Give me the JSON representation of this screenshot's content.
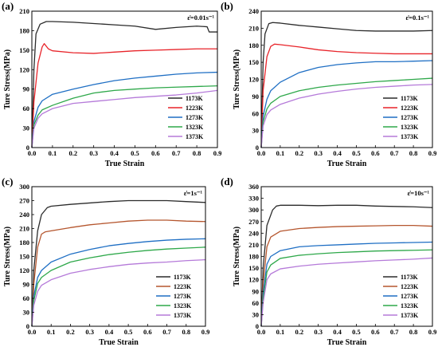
{
  "chart_data": [
    {
      "type": "line",
      "panel_label": "(a)",
      "annotation": "ε̇=0.01s⁻¹",
      "xlabel": "True Strain",
      "ylabel": "Ture Stress(MPa)",
      "xlim": [
        0.0,
        0.9
      ],
      "ylim": [
        0,
        210
      ],
      "xticks": [
        "0.0",
        "0.1",
        "0.2",
        "0.3",
        "0.4",
        "0.5",
        "0.6",
        "0.7",
        "0.8",
        "0.9"
      ],
      "yticks": [
        "0",
        "30",
        "60",
        "90",
        "120",
        "150",
        "180",
        "210"
      ],
      "legend_position": "bottom-right",
      "series": [
        {
          "name": "1173K",
          "color": "#2b2b2b",
          "x": [
            0,
            0.01,
            0.02,
            0.04,
            0.07,
            0.1,
            0.2,
            0.3,
            0.4,
            0.5,
            0.6,
            0.7,
            0.8,
            0.85,
            0.86,
            0.9
          ],
          "y": [
            0,
            120,
            175,
            190,
            194,
            194,
            193,
            191,
            189,
            187,
            182,
            185,
            187,
            186,
            178,
            178
          ]
        },
        {
          "name": "1223K",
          "color": "#e8242a",
          "x": [
            0,
            0.01,
            0.03,
            0.05,
            0.06,
            0.08,
            0.1,
            0.2,
            0.3,
            0.4,
            0.5,
            0.6,
            0.7,
            0.8,
            0.9
          ],
          "y": [
            0,
            70,
            130,
            155,
            160,
            152,
            149,
            146,
            145,
            147,
            149,
            150,
            151,
            152,
            152
          ]
        },
        {
          "name": "1273K",
          "color": "#1f6fc4",
          "x": [
            0,
            0.01,
            0.03,
            0.05,
            0.1,
            0.2,
            0.3,
            0.4,
            0.5,
            0.6,
            0.7,
            0.8,
            0.9
          ],
          "y": [
            0,
            40,
            62,
            72,
            82,
            90,
            97,
            103,
            107,
            110,
            113,
            115,
            116
          ]
        },
        {
          "name": "1323K",
          "color": "#2ea84a",
          "x": [
            0,
            0.01,
            0.03,
            0.05,
            0.1,
            0.2,
            0.3,
            0.4,
            0.5,
            0.6,
            0.7,
            0.8,
            0.9
          ],
          "y": [
            0,
            35,
            50,
            58,
            65,
            76,
            84,
            88,
            90,
            92,
            93,
            94,
            95
          ]
        },
        {
          "name": "1373K",
          "color": "#b57ad9",
          "x": [
            0,
            0.01,
            0.03,
            0.05,
            0.1,
            0.2,
            0.3,
            0.4,
            0.5,
            0.6,
            0.7,
            0.8,
            0.9
          ],
          "y": [
            0,
            30,
            45,
            52,
            60,
            68,
            71,
            74,
            77,
            79,
            81,
            84,
            88
          ]
        }
      ]
    },
    {
      "type": "line",
      "panel_label": "(b)",
      "annotation": "ε̇=0.1s⁻¹",
      "xlabel": "True Strain",
      "ylabel": "Ture Stress(MPa)",
      "xlim": [
        0.0,
        0.9
      ],
      "ylim": [
        0,
        240
      ],
      "xticks": [
        "0.0",
        "0.1",
        "0.2",
        "0.3",
        "0.4",
        "0.5",
        "0.6",
        "0.7",
        "0.8",
        "0.9"
      ],
      "yticks": [
        "0",
        "30",
        "60",
        "90",
        "120",
        "150",
        "180",
        "210",
        "240"
      ],
      "legend_position": "bottom-right",
      "series": [
        {
          "name": "1173K",
          "color": "#2b2b2b",
          "x": [
            0,
            0.01,
            0.02,
            0.04,
            0.06,
            0.1,
            0.2,
            0.3,
            0.4,
            0.5,
            0.6,
            0.7,
            0.8,
            0.9
          ],
          "y": [
            0,
            150,
            200,
            218,
            220,
            219,
            215,
            212,
            209,
            206,
            205,
            205,
            205,
            206
          ]
        },
        {
          "name": "1223K",
          "color": "#e8242a",
          "x": [
            0,
            0.01,
            0.03,
            0.05,
            0.07,
            0.1,
            0.2,
            0.3,
            0.4,
            0.5,
            0.6,
            0.7,
            0.8,
            0.9
          ],
          "y": [
            0,
            100,
            160,
            178,
            182,
            181,
            177,
            172,
            169,
            167,
            166,
            165,
            165,
            165
          ]
        },
        {
          "name": "1273K",
          "color": "#1f6fc4",
          "x": [
            0,
            0.01,
            0.03,
            0.05,
            0.1,
            0.2,
            0.3,
            0.4,
            0.5,
            0.6,
            0.7,
            0.8,
            0.9
          ],
          "y": [
            0,
            55,
            85,
            100,
            115,
            132,
            141,
            146,
            149,
            151,
            151,
            152,
            153
          ]
        },
        {
          "name": "1323K",
          "color": "#2ea84a",
          "x": [
            0,
            0.01,
            0.03,
            0.05,
            0.1,
            0.2,
            0.3,
            0.4,
            0.5,
            0.6,
            0.7,
            0.8,
            0.9
          ],
          "y": [
            0,
            45,
            68,
            78,
            90,
            100,
            106,
            110,
            113,
            116,
            118,
            120,
            122
          ]
        },
        {
          "name": "1373K",
          "color": "#b57ad9",
          "x": [
            0,
            0.01,
            0.03,
            0.05,
            0.1,
            0.2,
            0.3,
            0.4,
            0.5,
            0.6,
            0.7,
            0.8,
            0.9
          ],
          "y": [
            0,
            38,
            58,
            66,
            76,
            87,
            94,
            99,
            103,
            106,
            108,
            110,
            111
          ]
        }
      ]
    },
    {
      "type": "line",
      "panel_label": "(c)",
      "annotation": "ε̇=1s⁻¹",
      "xlabel": "True Strain",
      "ylabel": "Ture Stress(MPa)",
      "xlim": [
        0.0,
        0.9
      ],
      "ylim": [
        0,
        300
      ],
      "xticks": [
        "0.0",
        "0.1",
        "0.2",
        "0.3",
        "0.4",
        "0.5",
        "0.6",
        "0.7",
        "0.8",
        "0.9"
      ],
      "yticks": [
        "0",
        "30",
        "60",
        "90",
        "120",
        "150",
        "180",
        "210",
        "240",
        "270",
        "300"
      ],
      "legend_position": "bottom-right",
      "series": [
        {
          "name": "1173K",
          "color": "#2b2b2b",
          "x": [
            0,
            0.01,
            0.03,
            0.05,
            0.08,
            0.1,
            0.2,
            0.3,
            0.4,
            0.5,
            0.6,
            0.7,
            0.8,
            0.9
          ],
          "y": [
            0,
            120,
            205,
            240,
            255,
            258,
            262,
            265,
            268,
            270,
            270,
            270,
            268,
            266
          ]
        },
        {
          "name": "1223K",
          "color": "#b5562e",
          "x": [
            0,
            0.01,
            0.03,
            0.05,
            0.07,
            0.1,
            0.2,
            0.3,
            0.4,
            0.5,
            0.6,
            0.7,
            0.8,
            0.9
          ],
          "y": [
            0,
            90,
            170,
            198,
            203,
            205,
            212,
            218,
            222,
            226,
            228,
            228,
            226,
            225
          ]
        },
        {
          "name": "1273K",
          "color": "#1f6fc4",
          "x": [
            0,
            0.01,
            0.03,
            0.05,
            0.1,
            0.2,
            0.3,
            0.4,
            0.5,
            0.6,
            0.7,
            0.8,
            0.9
          ],
          "y": [
            0,
            65,
            105,
            120,
            138,
            155,
            165,
            173,
            178,
            182,
            185,
            187,
            188
          ]
        },
        {
          "name": "1323K",
          "color": "#2ea84a",
          "x": [
            0,
            0.01,
            0.03,
            0.05,
            0.1,
            0.2,
            0.3,
            0.4,
            0.5,
            0.6,
            0.7,
            0.8,
            0.9
          ],
          "y": [
            0,
            55,
            92,
            105,
            120,
            138,
            147,
            154,
            159,
            163,
            166,
            168,
            170
          ]
        },
        {
          "name": "1373K",
          "color": "#b57ad9",
          "x": [
            0,
            0.01,
            0.03,
            0.05,
            0.1,
            0.2,
            0.3,
            0.4,
            0.5,
            0.6,
            0.7,
            0.8,
            0.9
          ],
          "y": [
            0,
            45,
            75,
            88,
            100,
            114,
            122,
            128,
            133,
            136,
            138,
            141,
            143
          ]
        }
      ]
    },
    {
      "type": "line",
      "panel_label": "(d)",
      "annotation": "ε̇=10s⁻¹",
      "xlabel": "True Strain",
      "ylabel": "Ture Stress(MPa)",
      "xlim": [
        0.0,
        0.9
      ],
      "ylim": [
        0,
        360
      ],
      "xticks": [
        "0.0",
        "0.1",
        "0.2",
        "0.3",
        "0.4",
        "0.5",
        "0.6",
        "0.7",
        "0.8",
        "0.9"
      ],
      "yticks": [
        "0",
        "30",
        "60",
        "90",
        "120",
        "150",
        "180",
        "210",
        "240",
        "270",
        "300",
        "330",
        "360"
      ],
      "legend_position": "bottom-right",
      "series": [
        {
          "name": "1173K",
          "color": "#2b2b2b",
          "x": [
            0,
            0.01,
            0.03,
            0.06,
            0.08,
            0.1,
            0.2,
            0.3,
            0.4,
            0.5,
            0.6,
            0.7,
            0.8,
            0.9
          ],
          "y": [
            0,
            150,
            260,
            300,
            310,
            312,
            312,
            311,
            312,
            312,
            310,
            309,
            308,
            306
          ]
        },
        {
          "name": "1223K",
          "color": "#b5562e",
          "x": [
            0,
            0.01,
            0.03,
            0.05,
            0.1,
            0.2,
            0.3,
            0.4,
            0.5,
            0.6,
            0.7,
            0.8,
            0.9
          ],
          "y": [
            0,
            110,
            205,
            230,
            245,
            252,
            255,
            257,
            258,
            259,
            260,
            260,
            258
          ]
        },
        {
          "name": "1273K",
          "color": "#1f6fc4",
          "x": [
            0,
            0.01,
            0.03,
            0.05,
            0.1,
            0.2,
            0.3,
            0.4,
            0.5,
            0.6,
            0.7,
            0.8,
            0.9
          ],
          "y": [
            0,
            85,
            160,
            180,
            195,
            205,
            208,
            210,
            212,
            214,
            215,
            216,
            217
          ]
        },
        {
          "name": "1323K",
          "color": "#2ea84a",
          "x": [
            0,
            0.01,
            0.03,
            0.05,
            0.1,
            0.2,
            0.3,
            0.4,
            0.5,
            0.6,
            0.7,
            0.8,
            0.9
          ],
          "y": [
            0,
            70,
            140,
            158,
            175,
            183,
            187,
            190,
            192,
            194,
            195,
            196,
            197
          ]
        },
        {
          "name": "1373K",
          "color": "#b57ad9",
          "x": [
            0,
            0.01,
            0.03,
            0.05,
            0.1,
            0.2,
            0.3,
            0.4,
            0.5,
            0.6,
            0.7,
            0.8,
            0.9
          ],
          "y": [
            0,
            60,
            120,
            135,
            148,
            155,
            160,
            163,
            166,
            169,
            171,
            173,
            176
          ]
        }
      ]
    }
  ]
}
